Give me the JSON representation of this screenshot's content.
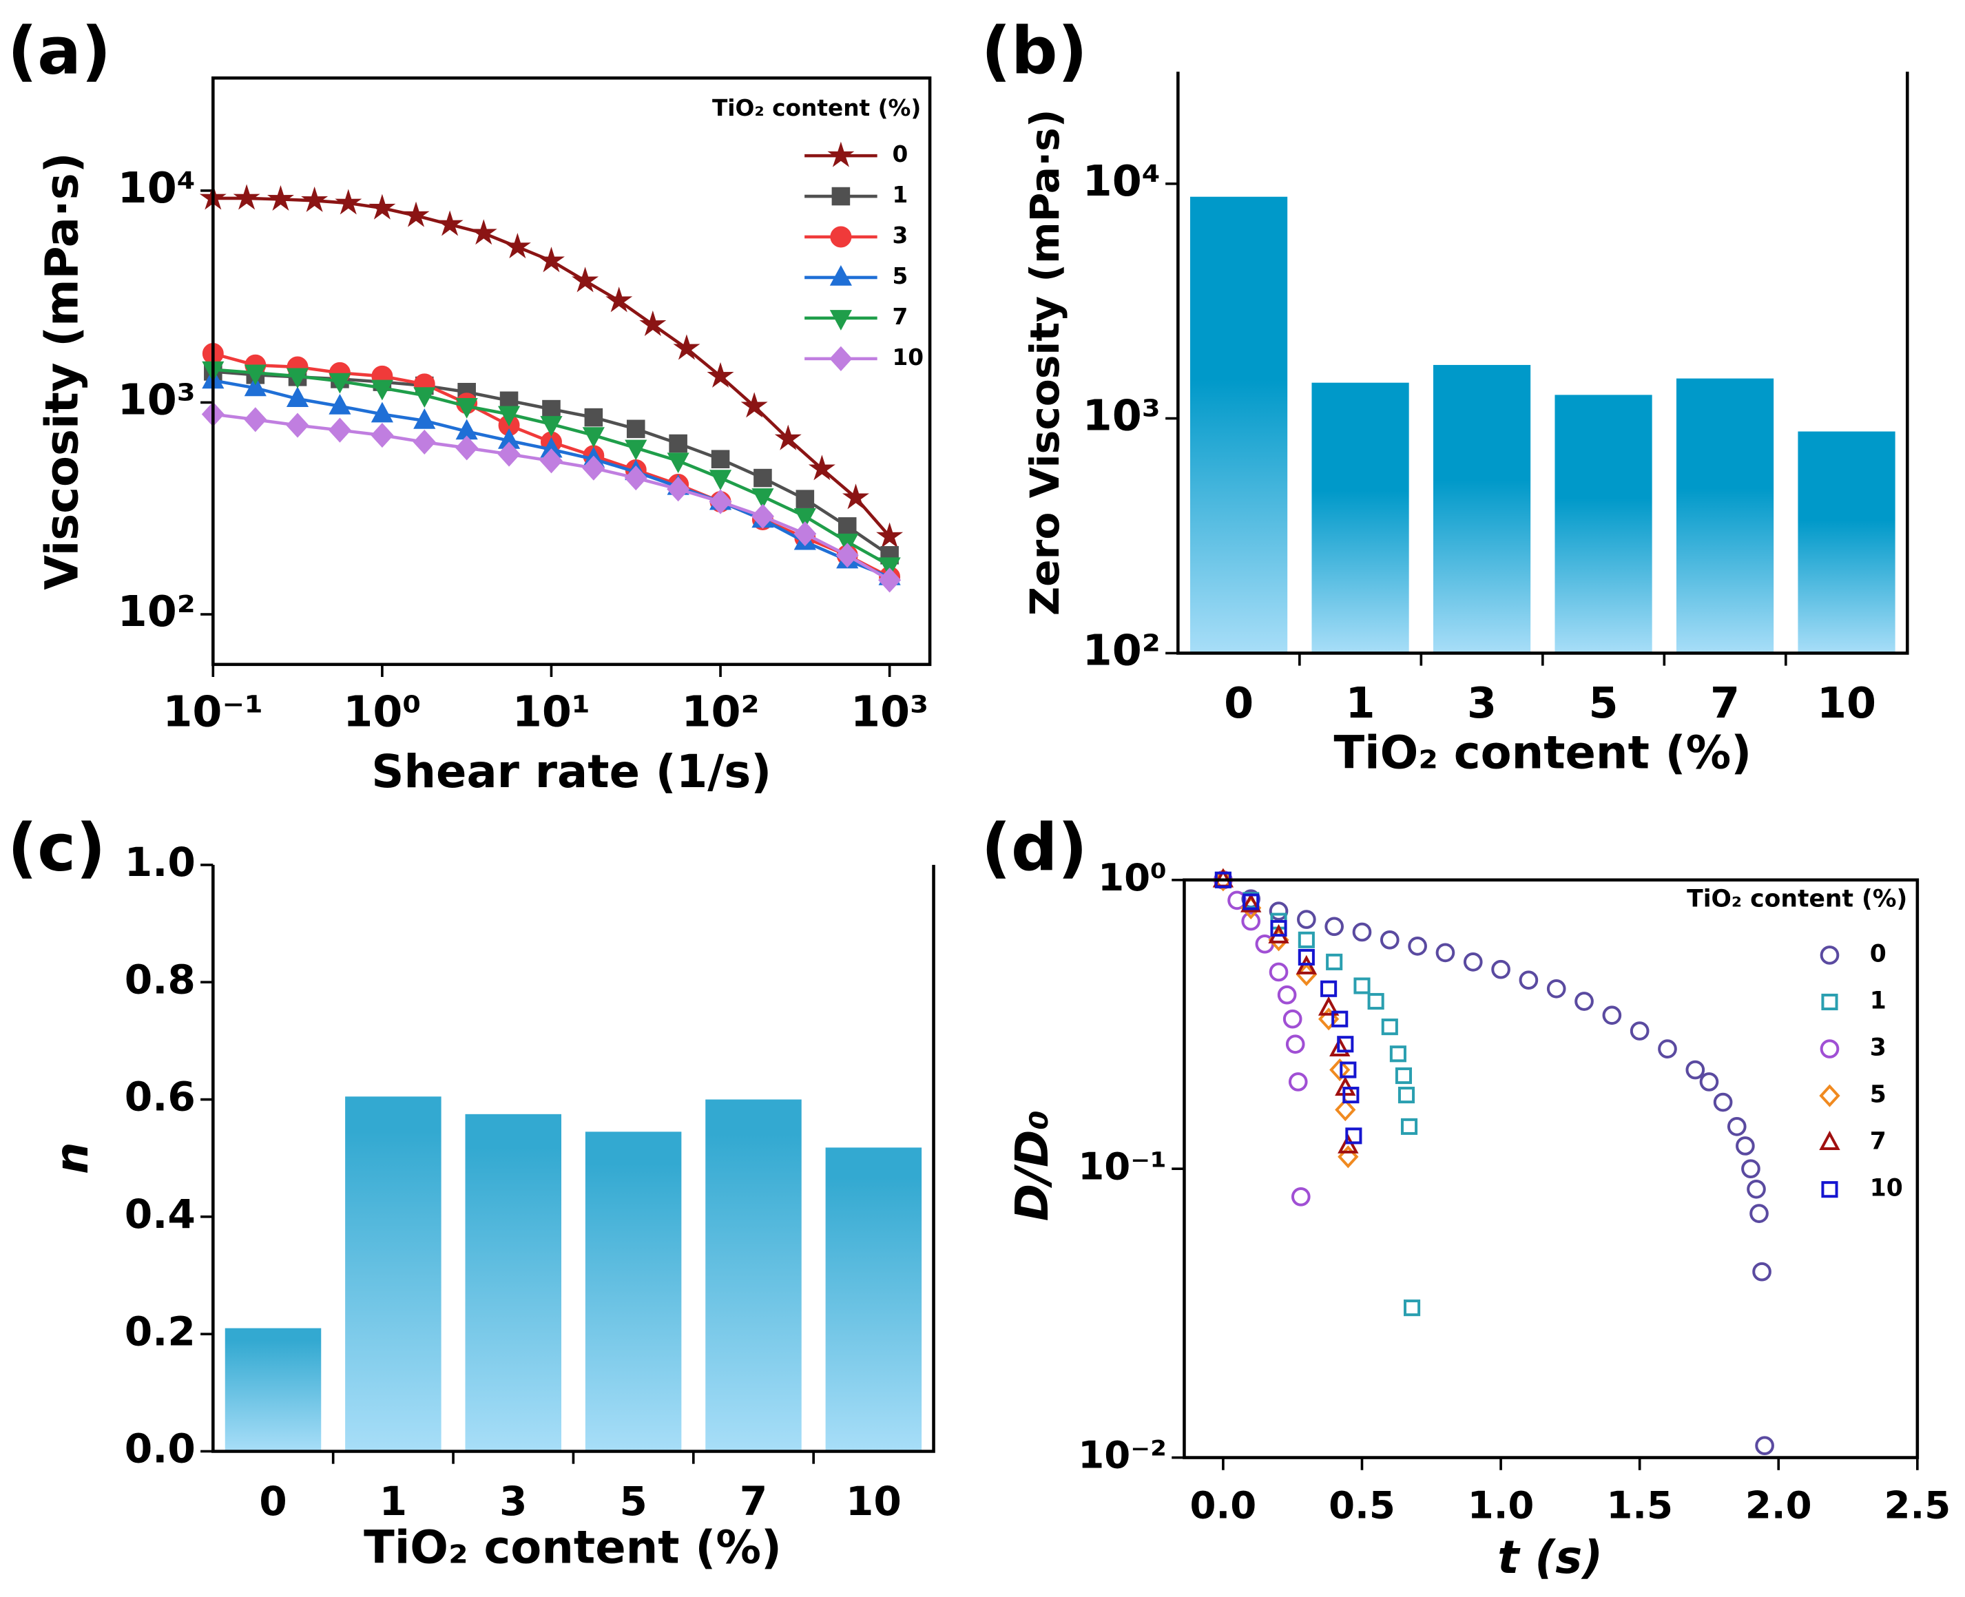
{
  "chart_data": [
    {
      "type": "line",
      "panel_label": "(a)",
      "x_label": "Shear rate (1/s)",
      "y_label": "Viscosity (mPa·s)",
      "xscale": "log",
      "yscale": "log",
      "xlim": [
        0.1,
        1730
      ],
      "ylim": [
        58,
        34000
      ],
      "xticks": [
        {
          "value": 0.1,
          "label": "10⁻¹"
        },
        {
          "value": 1,
          "label": "10⁰"
        },
        {
          "value": 10,
          "label": "10¹"
        },
        {
          "value": 100,
          "label": "10²"
        },
        {
          "value": 1000,
          "label": "10³"
        }
      ],
      "yticks": [
        {
          "value": 100,
          "label": "10²"
        },
        {
          "value": 1000,
          "label": "10³"
        },
        {
          "value": 10000,
          "label": "10⁴"
        }
      ],
      "legend": true,
      "legend_title": "TiO₂ content  (%)",
      "series": [
        {
          "name": "0",
          "color": "#8b1414",
          "marker": "star",
          "x": [
            0.1,
            0.158,
            0.251,
            0.398,
            0.631,
            1,
            1.585,
            2.512,
            3.981,
            6.31,
            10,
            15.85,
            25.12,
            39.81,
            63.1,
            100,
            158.5,
            251.2,
            398.1,
            631,
            1000
          ],
          "values": [
            9200,
            9200,
            9100,
            8970,
            8730,
            8270,
            7620,
            6920,
            6290,
            5420,
            4660,
            3750,
            3020,
            2330,
            1800,
            1330,
            960,
            674,
            486,
            355,
            233
          ]
        },
        {
          "name": "1",
          "color": "#505050",
          "marker": "square",
          "x": [
            0.1,
            0.178,
            0.316,
            0.562,
            1,
            1.778,
            3.162,
            5.623,
            10,
            17.78,
            31.62,
            56.23,
            100,
            177.8,
            316.2,
            562.3,
            1000
          ],
          "values": [
            1400,
            1350,
            1320,
            1290,
            1250,
            1200,
            1120,
            1020,
            930,
            850,
            750,
            640,
            540,
            440,
            350,
            260,
            190
          ]
        },
        {
          "name": "3",
          "color": "#f03a3a",
          "marker": "circle",
          "x": [
            0.1,
            0.178,
            0.316,
            0.562,
            1,
            1.778,
            3.162,
            5.623,
            10,
            17.78,
            31.62,
            56.23,
            100,
            177.8,
            316.2,
            562.3,
            1000
          ],
          "values": [
            1700,
            1500,
            1470,
            1380,
            1330,
            1220,
            990,
            780,
            650,
            560,
            480,
            410,
            340,
            280,
            230,
            190,
            150
          ]
        },
        {
          "name": "5",
          "color": "#1f6fd6",
          "marker": "triangle",
          "x": [
            0.1,
            0.178,
            0.316,
            0.562,
            1,
            1.778,
            3.162,
            5.623,
            10,
            17.78,
            31.62,
            56.23,
            100,
            177.8,
            316.2,
            562.3,
            1000
          ],
          "values": [
            1270,
            1170,
            1040,
            960,
            880,
            820,
            730,
            660,
            600,
            540,
            470,
            400,
            340,
            280,
            220,
            180,
            150
          ]
        },
        {
          "name": "7",
          "color": "#1f9e4a",
          "marker": "triangle-down",
          "x": [
            0.1,
            0.178,
            0.316,
            0.562,
            1,
            1.778,
            3.162,
            5.623,
            10,
            17.78,
            31.62,
            56.23,
            100,
            177.8,
            316.2,
            562.3,
            1000
          ],
          "values": [
            1430,
            1380,
            1330,
            1260,
            1170,
            1080,
            960,
            880,
            790,
            700,
            610,
            530,
            440,
            360,
            290,
            220,
            170
          ]
        },
        {
          "name": "10",
          "color": "#c07ee0",
          "marker": "diamond",
          "x": [
            0.1,
            0.178,
            0.316,
            0.562,
            1,
            1.778,
            3.162,
            5.623,
            10,
            17.78,
            31.62,
            56.23,
            100,
            177.8,
            316.2,
            562.3,
            1000
          ],
          "values": [
            880,
            830,
            780,
            740,
            700,
            650,
            610,
            570,
            530,
            490,
            440,
            390,
            340,
            290,
            240,
            190,
            145
          ]
        }
      ]
    },
    {
      "type": "bar",
      "panel_label": "(b)",
      "x_label": "TiO₂ content (%)",
      "y_label": "Zero Viscosity (mPa·s)",
      "yscale": "log",
      "ylim": [
        100,
        30000
      ],
      "yticks": [
        {
          "value": 100,
          "label": "10²"
        },
        {
          "value": 1000,
          "label": "10³"
        },
        {
          "value": 10000,
          "label": "10⁴"
        }
      ],
      "categories": [
        "0",
        "1",
        "3",
        "5",
        "7",
        "10"
      ],
      "values": [
        8800,
        1420,
        1690,
        1260,
        1480,
        880
      ],
      "color": "#0099c9",
      "color_bottom": "#a8def8"
    },
    {
      "type": "bar",
      "panel_label": "(c)",
      "x_label": "TiO₂ content (%)",
      "y_label": "n",
      "ylim": [
        0,
        1
      ],
      "yticks": [
        {
          "value": 0,
          "label": "0.0"
        },
        0.2,
        0.4,
        0.6,
        0.8,
        {
          "value": 1,
          "label": "1.0"
        }
      ],
      "categories": [
        "0",
        "1",
        "3",
        "5",
        "7",
        "10"
      ],
      "values": [
        0.21,
        0.605,
        0.575,
        0.545,
        0.6,
        0.518
      ],
      "color": "#33a9d1",
      "color_bottom": "#a8def8"
    },
    {
      "type": "scatter",
      "panel_label": "(d)",
      "x_label": "t (s)",
      "y_label": "D/D₀",
      "yscale": "log",
      "xlim": [
        -0.14,
        2.5
      ],
      "ylim": [
        0.01,
        1
      ],
      "xticks": [
        {
          "value": 0,
          "label": "0.0"
        },
        0.5,
        {
          "value": 1,
          "label": "1.0"
        },
        1.5,
        {
          "value": 2,
          "label": "2.0"
        },
        2.5
      ],
      "yticks": [
        {
          "value": 0.01,
          "label": "10⁻²"
        },
        {
          "value": 0.1,
          "label": "10⁻¹"
        },
        {
          "value": 1,
          "label": "10⁰"
        }
      ],
      "legend": true,
      "legend_title": "TiO₂ content (%)",
      "series": [
        {
          "name": "0",
          "color": "#5a4aa0",
          "marker": "circle",
          "x": [
            0,
            0.1,
            0.2,
            0.3,
            0.4,
            0.5,
            0.6,
            0.7,
            0.8,
            0.9,
            1.0,
            1.1,
            1.2,
            1.3,
            1.4,
            1.5,
            1.6,
            1.7,
            1.75,
            1.8,
            1.85,
            1.88,
            1.9,
            1.92,
            1.93,
            1.94,
            1.95
          ],
          "values": [
            1.0,
            0.86,
            0.78,
            0.73,
            0.69,
            0.66,
            0.62,
            0.59,
            0.56,
            0.52,
            0.49,
            0.45,
            0.42,
            0.38,
            0.34,
            0.3,
            0.26,
            0.22,
            0.2,
            0.17,
            0.14,
            0.12,
            0.1,
            0.085,
            0.07,
            0.044,
            0.011
          ]
        },
        {
          "name": "1",
          "color": "#2a9fb0",
          "marker": "square",
          "x": [
            0,
            0.1,
            0.2,
            0.3,
            0.4,
            0.5,
            0.55,
            0.6,
            0.63,
            0.65,
            0.66,
            0.67,
            0.68
          ],
          "values": [
            1.0,
            0.85,
            0.72,
            0.62,
            0.52,
            0.43,
            0.38,
            0.31,
            0.25,
            0.21,
            0.18,
            0.14,
            0.033
          ]
        },
        {
          "name": "3",
          "color": "#a04fd4",
          "marker": "circle",
          "x": [
            0,
            0.05,
            0.1,
            0.15,
            0.2,
            0.23,
            0.25,
            0.26,
            0.27,
            0.28
          ],
          "values": [
            1.0,
            0.85,
            0.72,
            0.6,
            0.48,
            0.4,
            0.33,
            0.27,
            0.2,
            0.08
          ]
        },
        {
          "name": "5",
          "color": "#f08a20",
          "marker": "diamond",
          "x": [
            0,
            0.1,
            0.2,
            0.3,
            0.38,
            0.42,
            0.44,
            0.45
          ],
          "values": [
            1.0,
            0.8,
            0.62,
            0.47,
            0.33,
            0.22,
            0.16,
            0.11
          ]
        },
        {
          "name": "7",
          "color": "#a01010",
          "marker": "triangle",
          "x": [
            0,
            0.1,
            0.2,
            0.3,
            0.38,
            0.42,
            0.44,
            0.45
          ],
          "values": [
            1.0,
            0.82,
            0.64,
            0.5,
            0.36,
            0.26,
            0.19,
            0.12
          ]
        },
        {
          "name": "10",
          "color": "#1515d0",
          "marker": "square",
          "x": [
            0,
            0.1,
            0.2,
            0.3,
            0.38,
            0.42,
            0.44,
            0.45,
            0.46,
            0.47
          ],
          "values": [
            1.0,
            0.84,
            0.68,
            0.54,
            0.42,
            0.33,
            0.27,
            0.22,
            0.18,
            0.13
          ]
        }
      ]
    }
  ]
}
